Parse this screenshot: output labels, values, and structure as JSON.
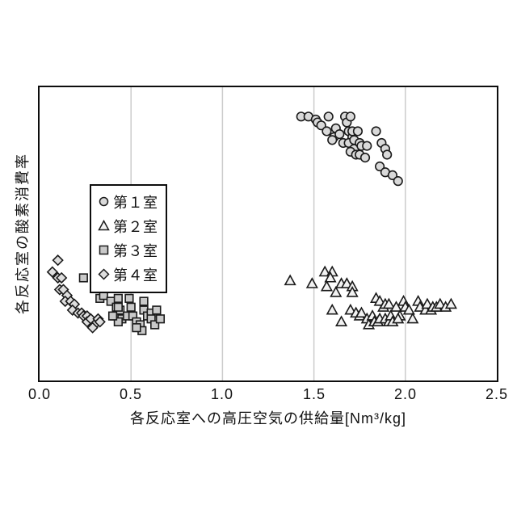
{
  "chart_data": {
    "type": "scatter",
    "title": "",
    "xlabel": "各反応室への高圧空気の供給量[Nm³/kg]",
    "ylabel": "各反応室の酸素消費率",
    "xlim": [
      0.0,
      2.5
    ],
    "ylim": [
      0,
      100
    ],
    "xticks": [
      "0.0",
      "0.5",
      "1.0",
      "1.5",
      "2.0",
      "2.5"
    ],
    "yticks": [],
    "y_axis_note": "y-axis has no numeric tick labels; y values are relative units 0-100 estimated from pixel positions",
    "grid": "vertical-gridlines-only",
    "gridlines_x": [
      0.5,
      1.0,
      1.5,
      2.0
    ],
    "legend_position": "upper-left-inside-plot",
    "colors": {
      "frame": "#0d0d0d",
      "grid": "#cccccc",
      "marker_stroke": "#1a1a1a",
      "background": "#ffffff"
    },
    "series": [
      {
        "name": "第１室",
        "marker": "circle",
        "fill": "#d9d9d9",
        "points": [
          [
            1.43,
            90
          ],
          [
            1.47,
            90
          ],
          [
            1.51,
            89
          ],
          [
            1.52,
            88
          ],
          [
            1.54,
            87
          ],
          [
            1.58,
            90
          ],
          [
            1.57,
            85
          ],
          [
            1.62,
            86
          ],
          [
            1.61,
            83
          ],
          [
            1.64,
            84
          ],
          [
            1.67,
            90
          ],
          [
            1.68,
            88
          ],
          [
            1.69,
            85
          ],
          [
            1.71,
            83
          ],
          [
            1.66,
            81
          ],
          [
            1.69,
            81
          ],
          [
            1.72,
            79
          ],
          [
            1.7,
            78
          ],
          [
            1.73,
            77
          ],
          [
            1.6,
            82
          ],
          [
            1.7,
            90
          ],
          [
            1.71,
            85
          ],
          [
            1.74,
            85
          ],
          [
            1.72,
            82
          ],
          [
            1.75,
            81
          ],
          [
            1.76,
            80
          ],
          [
            1.79,
            80
          ],
          [
            1.75,
            77
          ],
          [
            1.78,
            76
          ],
          [
            1.84,
            85
          ],
          [
            1.87,
            81
          ],
          [
            1.89,
            79
          ],
          [
            1.9,
            77
          ],
          [
            1.86,
            73
          ],
          [
            1.89,
            71
          ],
          [
            1.93,
            70
          ],
          [
            1.96,
            68
          ]
        ]
      },
      {
        "name": "第２室",
        "marker": "triangle",
        "fill": "#f2f2f2",
        "points": [
          [
            1.37,
            34
          ],
          [
            1.49,
            33
          ],
          [
            1.56,
            37
          ],
          [
            1.6,
            37
          ],
          [
            1.59,
            35
          ],
          [
            1.57,
            32
          ],
          [
            1.62,
            30
          ],
          [
            1.65,
            33
          ],
          [
            1.68,
            33
          ],
          [
            1.71,
            32
          ],
          [
            1.71,
            30
          ],
          [
            1.6,
            24
          ],
          [
            1.65,
            20
          ],
          [
            1.7,
            24
          ],
          [
            1.73,
            23
          ],
          [
            1.75,
            22
          ],
          [
            1.76,
            23
          ],
          [
            1.79,
            21
          ],
          [
            1.8,
            19
          ],
          [
            1.82,
            22
          ],
          [
            1.84,
            28
          ],
          [
            1.86,
            27
          ],
          [
            1.88,
            25
          ],
          [
            1.89,
            26
          ],
          [
            1.91,
            26
          ],
          [
            1.83,
            20
          ],
          [
            1.85,
            20
          ],
          [
            1.86,
            21
          ],
          [
            1.89,
            21
          ],
          [
            1.91,
            20
          ],
          [
            1.92,
            22
          ],
          [
            1.93,
            20
          ],
          [
            1.95,
            25
          ],
          [
            1.97,
            22
          ],
          [
            1.96,
            21
          ],
          [
            1.99,
            27
          ],
          [
            2.0,
            25
          ],
          [
            2.02,
            24
          ],
          [
            2.04,
            21
          ],
          [
            2.07,
            27
          ],
          [
            2.08,
            25
          ],
          [
            2.11,
            24
          ],
          [
            2.12,
            26
          ],
          [
            2.14,
            24
          ],
          [
            2.15,
            25
          ],
          [
            2.17,
            25
          ],
          [
            2.19,
            26
          ],
          [
            2.22,
            25
          ],
          [
            2.25,
            26
          ]
        ]
      },
      {
        "name": "第３室",
        "marker": "square",
        "fill": "#c9c9c9",
        "points": [
          [
            0.24,
            35
          ],
          [
            0.33,
            28
          ],
          [
            0.35,
            29
          ],
          [
            0.39,
            27
          ],
          [
            0.42,
            25
          ],
          [
            0.41,
            22
          ],
          [
            0.44,
            24
          ],
          [
            0.45,
            21
          ],
          [
            0.43,
            20
          ],
          [
            0.43,
            28
          ],
          [
            0.43,
            25
          ],
          [
            0.4,
            22
          ],
          [
            0.49,
            28
          ],
          [
            0.5,
            25
          ],
          [
            0.48,
            22
          ],
          [
            0.51,
            22
          ],
          [
            0.53,
            20
          ],
          [
            0.55,
            19
          ],
          [
            0.57,
            27
          ],
          [
            0.57,
            24
          ],
          [
            0.59,
            22
          ],
          [
            0.61,
            23
          ],
          [
            0.61,
            21
          ],
          [
            0.64,
            24
          ],
          [
            0.63,
            19
          ],
          [
            0.66,
            21
          ],
          [
            0.56,
            17
          ],
          [
            0.53,
            18
          ]
        ]
      },
      {
        "name": "第４室",
        "marker": "diamond",
        "fill": "#dedede",
        "points": [
          [
            0.1,
            41
          ],
          [
            0.07,
            37
          ],
          [
            0.1,
            35
          ],
          [
            0.12,
            35
          ],
          [
            0.11,
            31
          ],
          [
            0.13,
            31
          ],
          [
            0.15,
            29
          ],
          [
            0.14,
            27
          ],
          [
            0.17,
            27
          ],
          [
            0.19,
            26
          ],
          [
            0.18,
            24
          ],
          [
            0.21,
            23
          ],
          [
            0.23,
            23
          ],
          [
            0.24,
            22
          ],
          [
            0.26,
            22
          ],
          [
            0.26,
            20
          ],
          [
            0.28,
            21
          ],
          [
            0.3,
            19
          ],
          [
            0.29,
            18
          ],
          [
            0.32,
            21
          ],
          [
            0.33,
            20
          ]
        ]
      }
    ]
  }
}
